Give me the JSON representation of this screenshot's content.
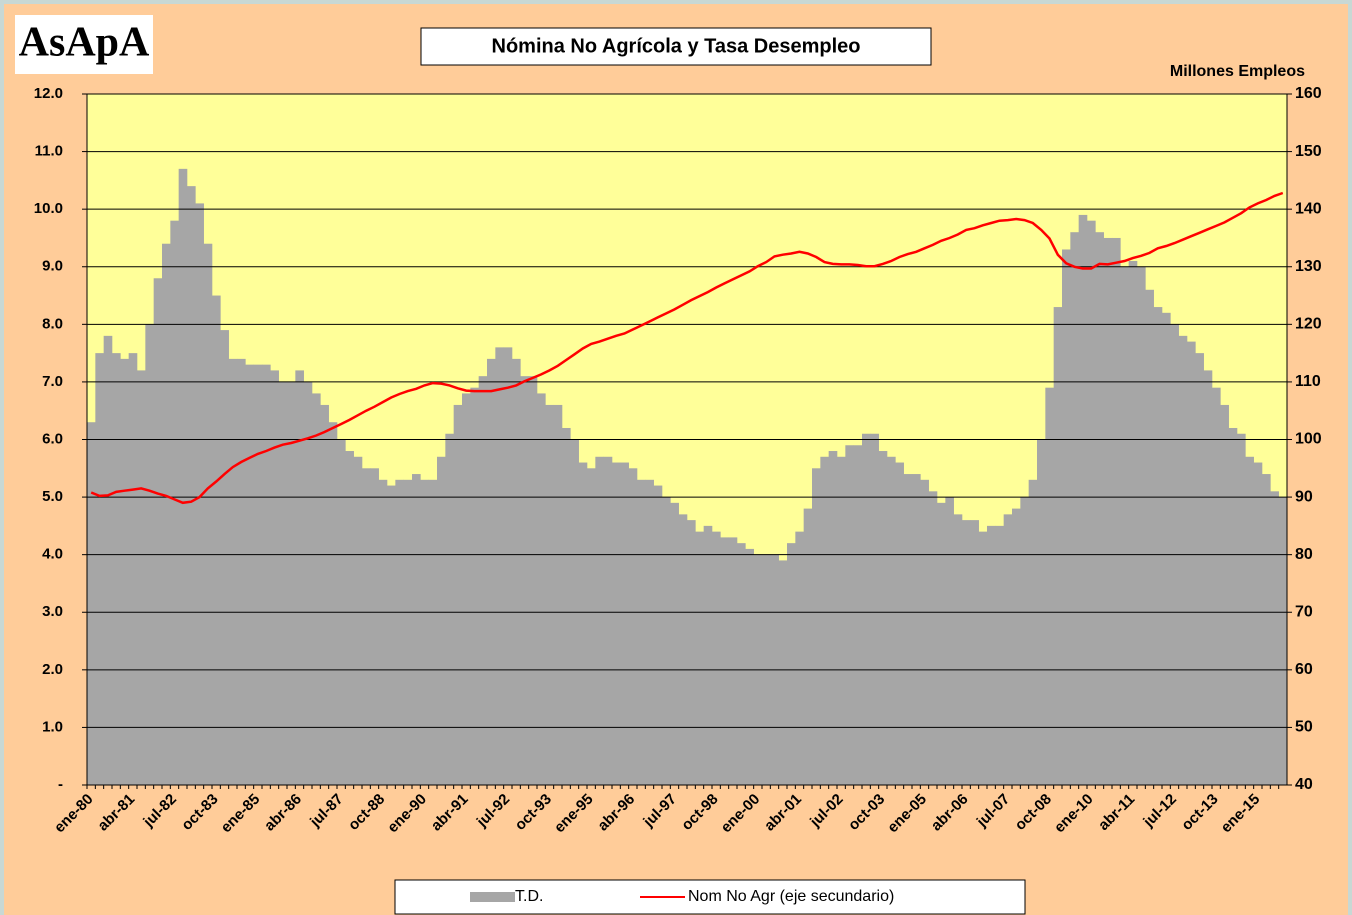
{
  "logo": "AsApA",
  "chart_data": {
    "type": "bar_line",
    "title": "Nómina No Agrícola y Tasa Desempleo",
    "y2_label": "Millones Empleos",
    "categories": [
      "ene-80",
      null,
      null,
      null,
      null,
      "abr-81",
      null,
      null,
      null,
      null,
      "jul-82",
      null,
      null,
      null,
      null,
      "oct-83",
      null,
      null,
      null,
      null,
      "ene-85",
      null,
      null,
      null,
      null,
      "abr-86",
      null,
      null,
      null,
      null,
      "jul-87",
      null,
      null,
      null,
      null,
      "oct-88",
      null,
      null,
      null,
      null,
      "ene-90",
      null,
      null,
      null,
      null,
      "abr-91",
      null,
      null,
      null,
      null,
      "jul-92",
      null,
      null,
      null,
      null,
      "oct-93",
      null,
      null,
      null,
      null,
      "ene-95",
      null,
      null,
      null,
      null,
      "abr-96",
      null,
      null,
      null,
      null,
      "jul-97",
      null,
      null,
      null,
      null,
      "oct-98",
      null,
      null,
      null,
      null,
      "ene-00",
      null,
      null,
      null,
      null,
      "abr-01",
      null,
      null,
      null,
      null,
      "jul-02",
      null,
      null,
      null,
      null,
      "oct-03",
      null,
      null,
      null,
      null,
      "ene-05",
      null,
      null,
      null,
      null,
      "abr-06",
      null,
      null,
      null,
      null,
      "jul-07",
      null,
      null,
      null,
      null,
      "oct-08",
      null,
      null,
      null,
      null,
      "ene-10",
      null,
      null,
      null,
      null,
      "abr-11",
      null,
      null,
      null,
      null,
      "jul-12",
      null,
      null,
      null,
      null,
      "oct-13",
      null,
      null,
      null,
      null,
      "ene-15",
      null,
      null,
      null
    ],
    "series": [
      {
        "name": "T.D.",
        "color": "#a6a6a6",
        "values": [
          6.3,
          7.5,
          7.8,
          7.5,
          7.4,
          7.5,
          7.2,
          8.0,
          8.8,
          9.4,
          9.8,
          10.7,
          10.4,
          10.1,
          9.4,
          8.5,
          7.9,
          7.4,
          7.4,
          7.3,
          7.3,
          7.3,
          7.2,
          7.0,
          7.0,
          7.2,
          7.0,
          6.8,
          6.6,
          6.3,
          6.0,
          5.8,
          5.7,
          5.5,
          5.5,
          5.3,
          5.2,
          5.3,
          5.3,
          5.4,
          5.3,
          5.3,
          5.7,
          6.1,
          6.6,
          6.8,
          6.9,
          7.1,
          7.4,
          7.6,
          7.6,
          7.4,
          7.1,
          7.1,
          6.8,
          6.6,
          6.6,
          6.2,
          6.0,
          5.6,
          5.5,
          5.7,
          5.7,
          5.6,
          5.6,
          5.5,
          5.3,
          5.3,
          5.2,
          5.0,
          4.9,
          4.7,
          4.6,
          4.4,
          4.5,
          4.4,
          4.3,
          4.3,
          4.2,
          4.1,
          4.0,
          4.0,
          4.0,
          3.9,
          4.2,
          4.4,
          4.8,
          5.5,
          5.7,
          5.8,
          5.7,
          5.9,
          5.9,
          6.1,
          6.1,
          5.8,
          5.7,
          5.6,
          5.4,
          5.4,
          5.3,
          5.1,
          4.9,
          5.0,
          4.7,
          4.6,
          4.6,
          4.4,
          4.5,
          4.5,
          4.7,
          4.8,
          5.0,
          5.3,
          6.0,
          6.9,
          8.3,
          9.3,
          9.6,
          9.9,
          9.8,
          9.6,
          9.5,
          9.5,
          9.0,
          9.1,
          9.0,
          8.6,
          8.3,
          8.2,
          8.0,
          7.8,
          7.7,
          7.5,
          7.2,
          6.9,
          6.6,
          6.2,
          6.1,
          5.7,
          5.6,
          5.4,
          5.1,
          5.0
        ]
      },
      {
        "name": "Nom No Agr (eje secundario)",
        "color": "#ff0000",
        "axis": "y2",
        "values": [
          90.8,
          90.2,
          90.3,
          90.9,
          91.1,
          91.3,
          91.5,
          91.1,
          90.6,
          90.2,
          89.6,
          89.0,
          89.2,
          90.0,
          91.5,
          92.7,
          94.0,
          95.2,
          96.1,
          96.8,
          97.5,
          98.0,
          98.6,
          99.1,
          99.4,
          99.8,
          100.2,
          100.7,
          101.3,
          102.0,
          102.7,
          103.4,
          104.2,
          105.0,
          105.7,
          106.5,
          107.3,
          107.9,
          108.4,
          108.8,
          109.4,
          109.8,
          109.7,
          109.4,
          108.9,
          108.5,
          108.4,
          108.4,
          108.4,
          108.7,
          109.0,
          109.4,
          110.1,
          110.7,
          111.3,
          112.0,
          112.8,
          113.8,
          114.8,
          115.8,
          116.6,
          117.0,
          117.5,
          118.0,
          118.4,
          119.1,
          119.8,
          120.5,
          121.2,
          121.9,
          122.6,
          123.4,
          124.2,
          124.9,
          125.6,
          126.4,
          127.1,
          127.8,
          128.5,
          129.2,
          130.1,
          130.8,
          131.8,
          132.1,
          132.3,
          132.6,
          132.3,
          131.7,
          130.8,
          130.5,
          130.4,
          130.4,
          130.3,
          130.1,
          130.1,
          130.5,
          131.0,
          131.7,
          132.2,
          132.6,
          133.2,
          133.8,
          134.5,
          135.0,
          135.6,
          136.4,
          136.7,
          137.2,
          137.6,
          138.0,
          138.1,
          138.3,
          138.1,
          137.6,
          136.4,
          134.9,
          132.1,
          130.6,
          130.0,
          129.7,
          129.7,
          130.5,
          130.4,
          130.7,
          131.0,
          131.5,
          131.9,
          132.4,
          133.2,
          133.6,
          134.1,
          134.7,
          135.3,
          135.9,
          136.5,
          137.1,
          137.7,
          138.5,
          139.3,
          140.3,
          141.0,
          141.6,
          142.3,
          142.8
        ]
      }
    ],
    "ylim": [
      0,
      12
    ],
    "yticks": [
      {
        "value": 0,
        "label": "-"
      },
      {
        "value": 1,
        "label": "1.0"
      },
      {
        "value": 2,
        "label": "2.0"
      },
      {
        "value": 3,
        "label": "3.0"
      },
      {
        "value": 4,
        "label": "4.0"
      },
      {
        "value": 5,
        "label": "5.0"
      },
      {
        "value": 6,
        "label": "6.0"
      },
      {
        "value": 7,
        "label": "7.0"
      },
      {
        "value": 8,
        "label": "8.0"
      },
      {
        "value": 9,
        "label": "9.0"
      },
      {
        "value": 10,
        "label": "10.0"
      },
      {
        "value": 11,
        "label": "11.0"
      },
      {
        "value": 12,
        "label": "12.0"
      }
    ],
    "y2lim": [
      40,
      160
    ],
    "y2ticks": [
      40,
      50,
      60,
      70,
      80,
      90,
      100,
      110,
      120,
      130,
      140,
      150,
      160
    ],
    "grid": true
  }
}
